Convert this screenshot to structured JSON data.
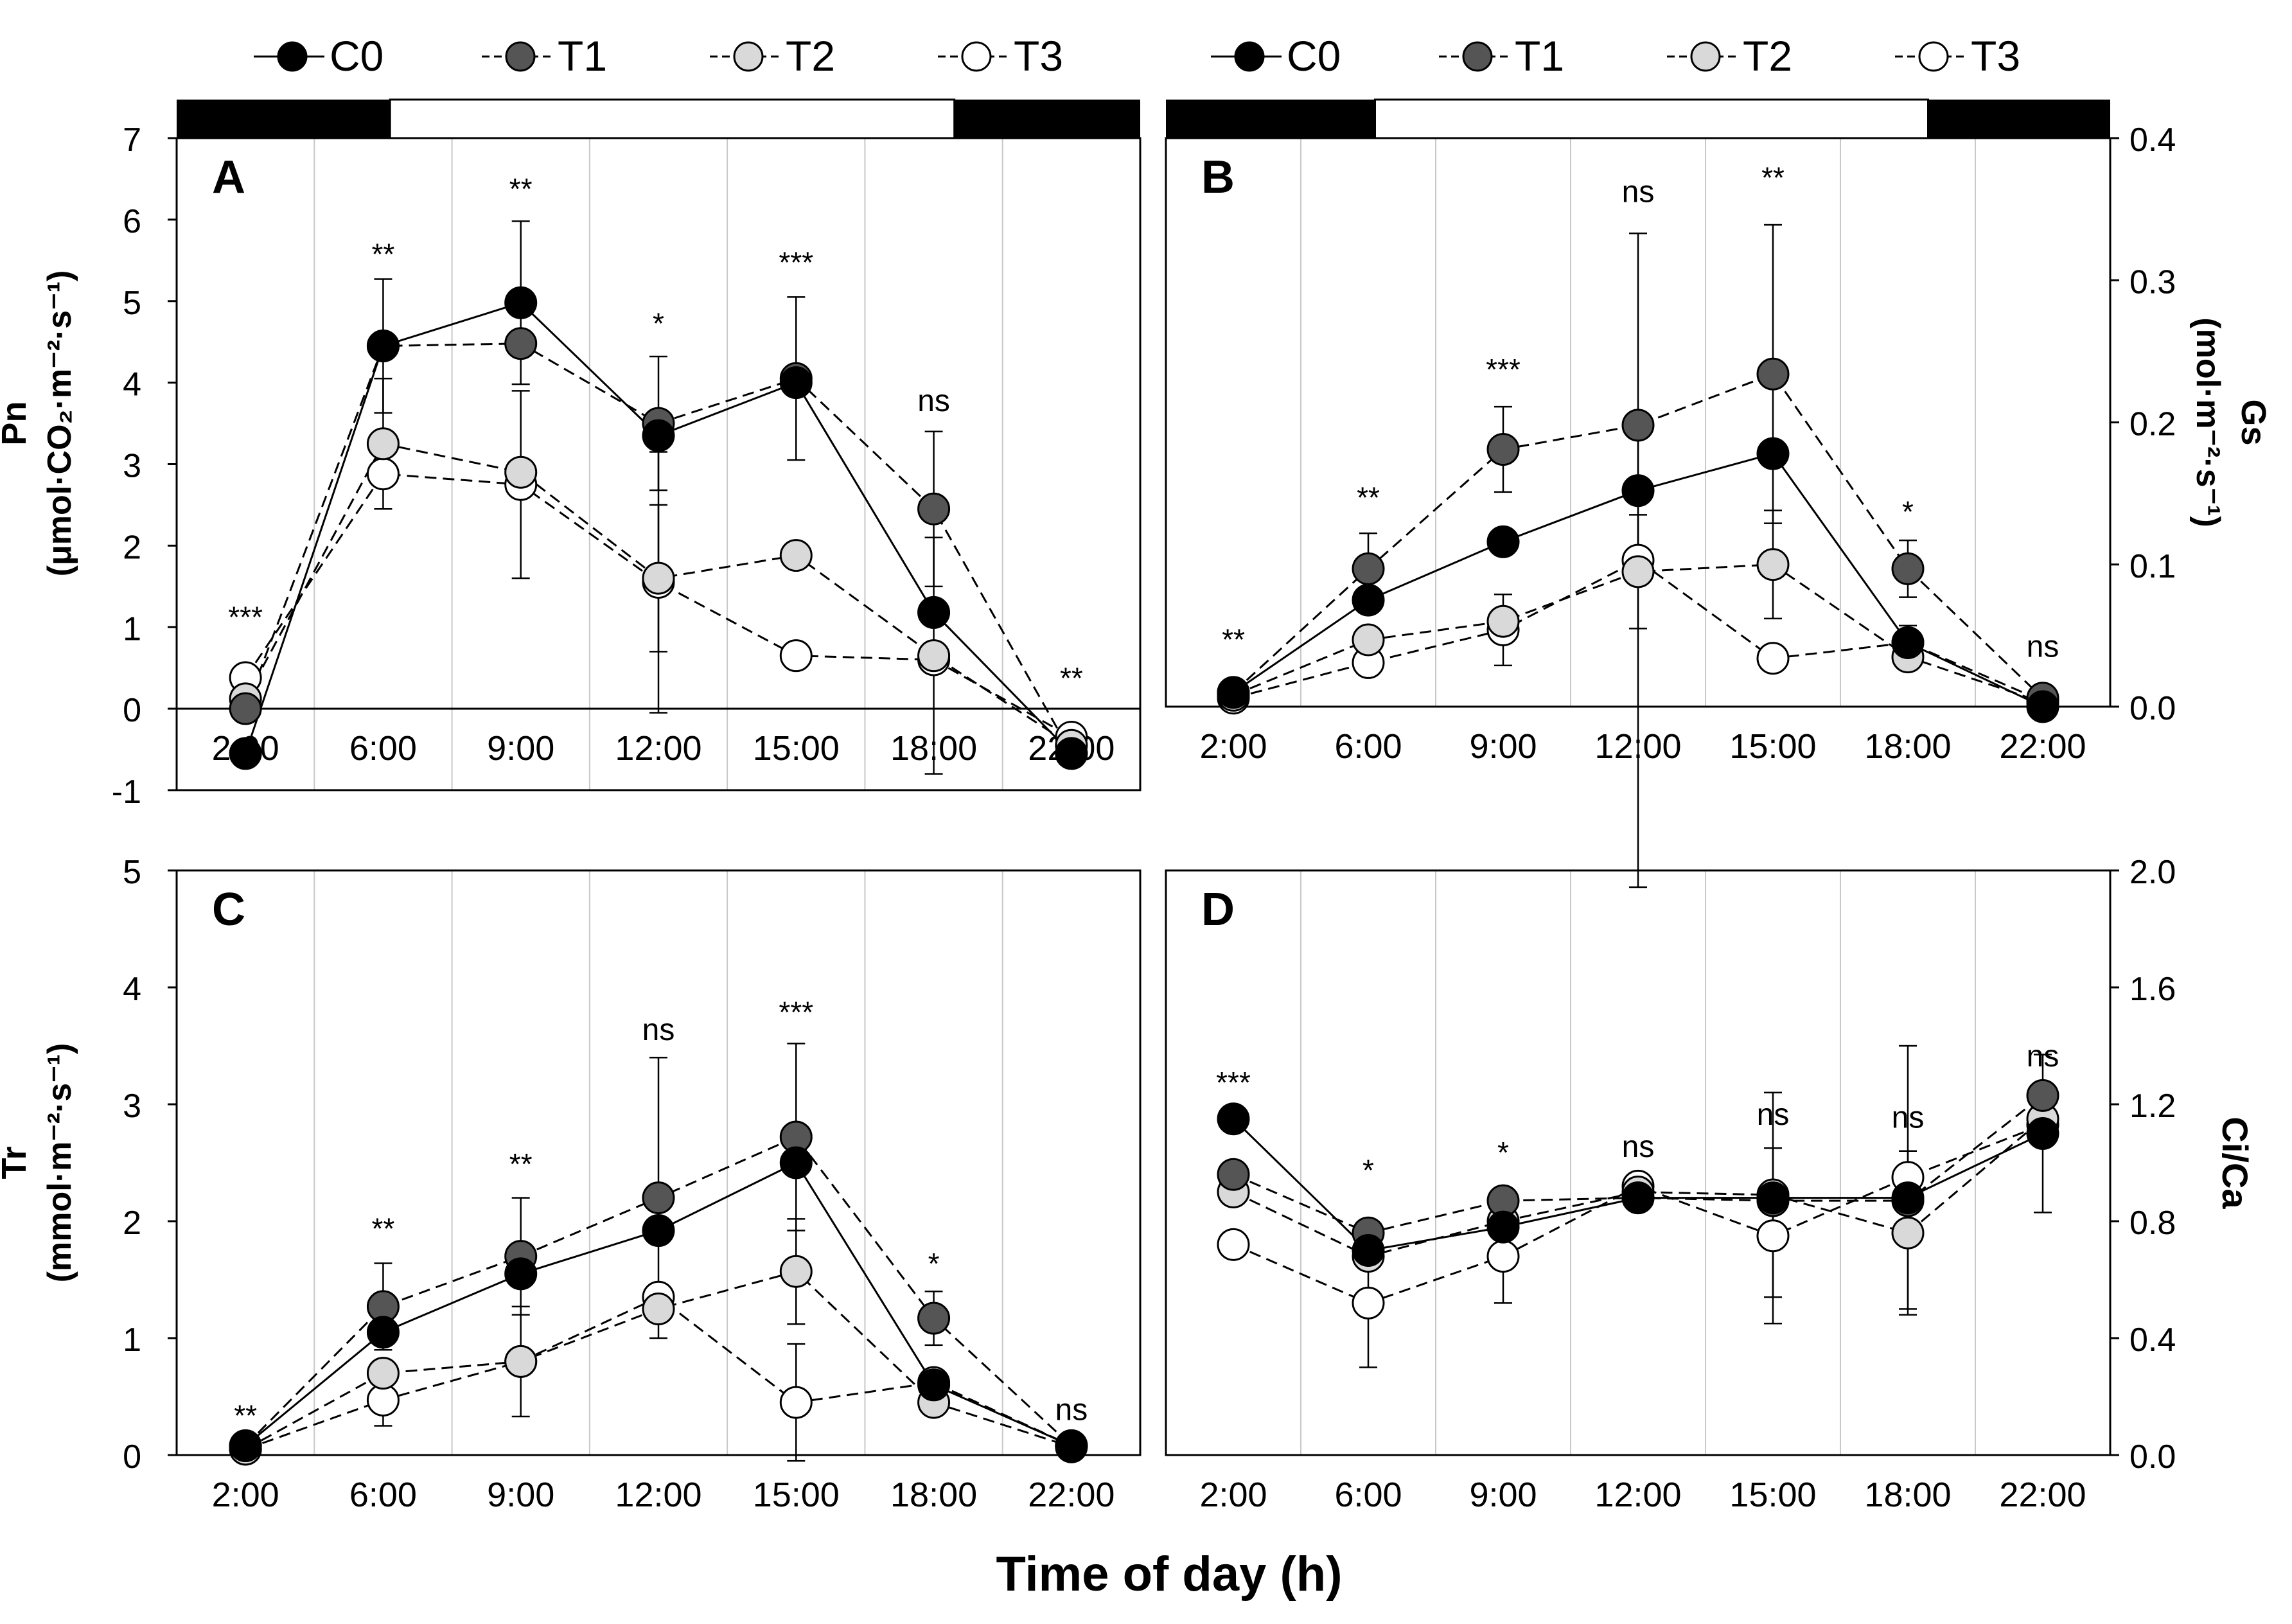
{
  "figure": {
    "shared_xlabel": "Time of day (h)",
    "legend_entries": [
      "C0",
      "T1",
      "T2",
      "T3"
    ],
    "light_period": {
      "dark_until": "6:00",
      "light_from": "6:00",
      "light_until": "18:00",
      "dark_from": "18:00"
    }
  },
  "colors": {
    "C0": "#000000",
    "T1": "#555555",
    "T2": "#d9d9d9",
    "T3": "#ffffff",
    "line": "#000000",
    "grid": "#c8c8c8"
  },
  "chart_data": [
    {
      "type": "line",
      "panel_label": "A",
      "ylabel_line1": "Pn",
      "ylabel_line2": "(μmol·CO₂·m⁻²·s⁻¹)",
      "y_axis_side": "left",
      "categories": [
        "2:00",
        "6:00",
        "9:00",
        "12:00",
        "15:00",
        "18:00",
        "22:00"
      ],
      "ylim": [
        -1,
        7
      ],
      "yticks": [
        -1,
        0,
        1,
        2,
        3,
        4,
        5,
        6,
        7
      ],
      "ytick_labels": [
        "-1",
        "0",
        "1",
        "2",
        "3",
        "4",
        "5",
        "6",
        "7"
      ],
      "x_labels_position": "inside-at-zero",
      "light_bar": true,
      "significance": [
        "***",
        "**",
        "**",
        "*",
        "***",
        "ns",
        "**"
      ],
      "sig_y": [
        1.0,
        5.45,
        6.25,
        4.6,
        5.35,
        3.65,
        0.25
      ],
      "series": [
        {
          "name": "C0",
          "values": [
            -0.55,
            4.45,
            4.98,
            3.35,
            4.0,
            1.18,
            -0.55
          ],
          "errors": [
            null,
            null,
            1.0,
            null,
            null,
            null,
            null
          ]
        },
        {
          "name": "T1",
          "values": [
            0.0,
            4.45,
            4.48,
            3.5,
            4.05,
            2.45,
            -0.55
          ],
          "errors": [
            null,
            0.82,
            null,
            0.82,
            1.0,
            0.95,
            null
          ]
        },
        {
          "name": "T2",
          "values": [
            0.12,
            3.25,
            2.9,
            1.6,
            1.88,
            0.65,
            -0.45
          ],
          "errors": [
            null,
            0.8,
            null,
            0.9,
            null,
            1.45,
            null
          ]
        },
        {
          "name": "T3",
          "values": [
            0.38,
            2.88,
            2.75,
            1.55,
            0.65,
            0.6,
            -0.35
          ],
          "errors": [
            null,
            null,
            1.15,
            1.6,
            null,
            null,
            null
          ]
        }
      ]
    },
    {
      "type": "line",
      "panel_label": "B",
      "ylabel_line1": "Gs",
      "ylabel_line2": "(mol·m⁻²·s⁻¹)",
      "y_axis_side": "right",
      "categories": [
        "2:00",
        "6:00",
        "9:00",
        "12:00",
        "15:00",
        "18:00",
        "22:00"
      ],
      "ylim": [
        0.0,
        0.4
      ],
      "yticks": [
        0.0,
        0.1,
        0.2,
        0.3,
        0.4
      ],
      "ytick_labels": [
        "0.0",
        "0.1",
        "0.2",
        "0.3",
        "0.4"
      ],
      "x_labels_position": "below",
      "light_bar": true,
      "significance": [
        "**",
        "**",
        "***",
        "ns",
        "**",
        "*",
        "ns"
      ],
      "sig_y": [
        0.04,
        0.14,
        0.23,
        0.355,
        0.365,
        0.13,
        0.035
      ],
      "series": [
        {
          "name": "C0",
          "values": [
            0.01,
            0.075,
            0.116,
            0.152,
            0.178,
            0.045,
            0.0
          ],
          "errors": [
            null,
            null,
            null,
            0.05,
            null,
            null,
            null
          ]
        },
        {
          "name": "T1",
          "values": [
            0.01,
            0.097,
            0.181,
            0.198,
            0.234,
            0.097,
            0.006
          ],
          "errors": [
            null,
            0.025,
            0.03,
            null,
            0.105,
            0.02,
            null
          ]
        },
        {
          "name": "T2",
          "values": [
            0.008,
            0.047,
            0.06,
            0.095,
            0.1,
            0.035,
            0.003
          ],
          "errors": [
            null,
            null,
            null,
            0.04,
            0.038,
            null,
            null
          ]
        },
        {
          "name": "T3",
          "values": [
            0.006,
            0.031,
            0.054,
            0.103,
            0.034,
            0.045,
            0.004
          ],
          "errors": [
            null,
            null,
            0.025,
            0.23,
            null,
            0.012,
            null
          ]
        }
      ]
    },
    {
      "type": "line",
      "panel_label": "C",
      "ylabel_line1": "Tr",
      "ylabel_line2": "(mmol·m⁻²·s⁻¹)",
      "y_axis_side": "left",
      "categories": [
        "2:00",
        "6:00",
        "9:00",
        "12:00",
        "15:00",
        "18:00",
        "22:00"
      ],
      "ylim": [
        0,
        5
      ],
      "yticks": [
        0,
        1,
        2,
        3,
        4,
        5
      ],
      "ytick_labels": [
        "0",
        "1",
        "2",
        "3",
        "4",
        "5"
      ],
      "x_labels_position": "below",
      "light_bar": false,
      "significance": [
        "**",
        "**",
        "**",
        "ns",
        "***",
        "*",
        "ns"
      ],
      "sig_y": [
        0.25,
        1.85,
        2.4,
        3.55,
        3.7,
        1.55,
        0.3
      ],
      "series": [
        {
          "name": "C0",
          "values": [
            0.08,
            1.05,
            1.55,
            1.92,
            2.5,
            0.6,
            0.08
          ],
          "errors": [
            null,
            null,
            null,
            null,
            null,
            null,
            null
          ]
        },
        {
          "name": "T1",
          "values": [
            0.08,
            1.27,
            1.7,
            2.2,
            2.72,
            1.17,
            0.08
          ],
          "errors": [
            null,
            0.37,
            0.5,
            1.2,
            0.8,
            0.23,
            null
          ]
        },
        {
          "name": "T2",
          "values": [
            0.05,
            0.7,
            0.8,
            1.25,
            1.57,
            0.45,
            0.07
          ],
          "errors": [
            null,
            null,
            0.47,
            null,
            0.45,
            null,
            null
          ]
        },
        {
          "name": "T3",
          "values": [
            0.05,
            0.47,
            0.8,
            1.35,
            0.45,
            0.62,
            0.08
          ],
          "errors": [
            null,
            0.22,
            null,
            null,
            0.5,
            null,
            null
          ]
        }
      ]
    },
    {
      "type": "line",
      "panel_label": "D",
      "ylabel_line1": "Ci/Ca",
      "ylabel_line2": "",
      "y_axis_side": "right",
      "categories": [
        "2:00",
        "6:00",
        "9:00",
        "12:00",
        "15:00",
        "18:00",
        "22:00"
      ],
      "ylim": [
        0.0,
        2.0
      ],
      "yticks": [
        0.0,
        0.4,
        0.8,
        1.2,
        1.6,
        2.0
      ],
      "ytick_labels": [
        "0.0",
        "0.4",
        "0.8",
        "1.2",
        "1.6",
        "2.0"
      ],
      "x_labels_position": "below",
      "light_bar": false,
      "significance": [
        "***",
        "*",
        "*",
        "ns",
        "ns",
        "ns",
        "ns"
      ],
      "sig_y": [
        1.24,
        0.94,
        1.0,
        1.02,
        1.13,
        1.12,
        1.33
      ],
      "series": [
        {
          "name": "C0",
          "values": [
            1.15,
            0.7,
            0.78,
            0.88,
            0.88,
            0.88,
            1.1
          ],
          "errors": [
            null,
            null,
            null,
            null,
            null,
            null,
            0.27
          ]
        },
        {
          "name": "T1",
          "values": [
            0.96,
            0.76,
            0.87,
            0.88,
            0.87,
            0.87,
            1.23
          ],
          "errors": [
            null,
            null,
            null,
            null,
            null,
            null,
            null
          ]
        },
        {
          "name": "T2",
          "values": [
            0.9,
            0.68,
            0.8,
            0.9,
            0.89,
            0.76,
            1.15
          ],
          "errors": [
            null,
            null,
            null,
            null,
            0.35,
            0.28,
            null
          ]
        },
        {
          "name": "T3",
          "values": [
            0.72,
            0.52,
            0.68,
            0.92,
            0.75,
            0.95,
            1.13
          ],
          "errors": [
            null,
            0.22,
            0.16,
            null,
            0.3,
            0.45,
            null
          ]
        }
      ]
    }
  ]
}
